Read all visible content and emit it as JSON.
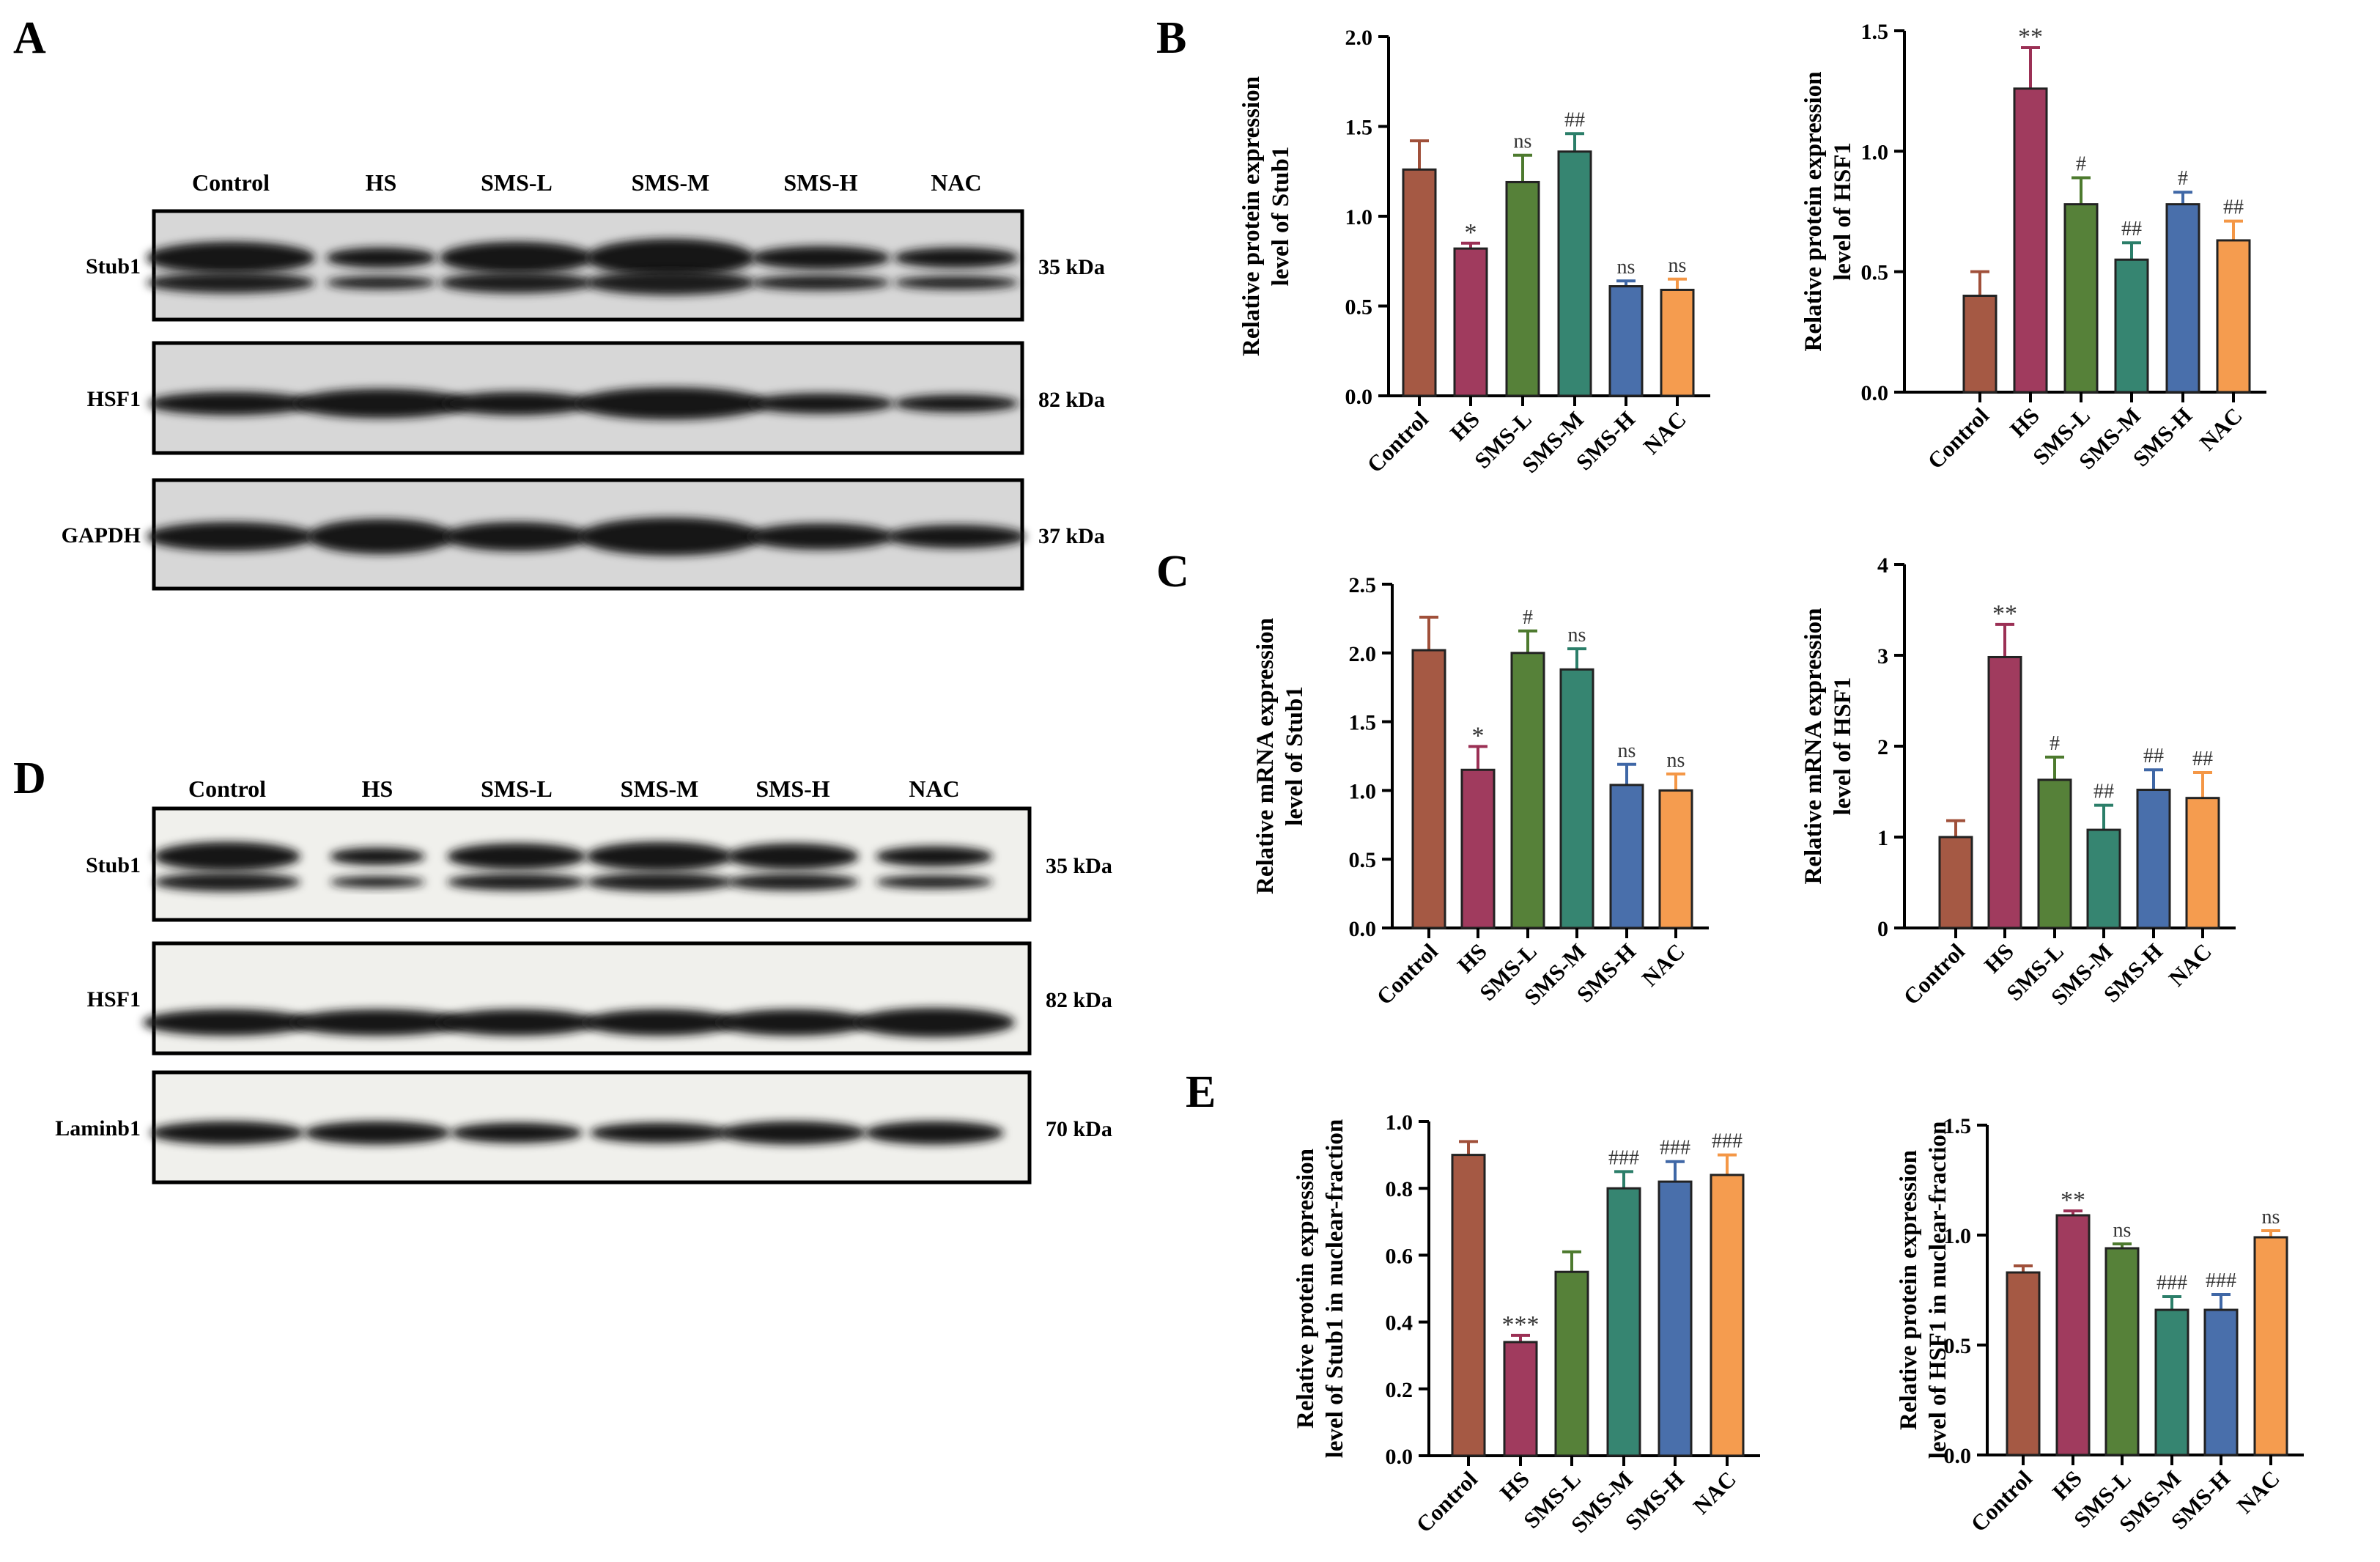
{
  "panel_letters": {
    "A": "A",
    "B": "B",
    "C": "C",
    "D": "D",
    "E": "E"
  },
  "blot_A": {
    "lanes": [
      "Control",
      "HS",
      "SMS-L",
      "SMS-M",
      "SMS-H",
      "NAC"
    ],
    "rows": [
      {
        "label": "Stub1",
        "kda": "35 kDa",
        "doublet": true
      },
      {
        "label": "HSF1",
        "kda": "82 kDa",
        "doublet": false
      },
      {
        "label": "GAPDH",
        "kda": "37 kDa",
        "doublet": false
      }
    ]
  },
  "blot_D": {
    "lanes": [
      "Control",
      "HS",
      "SMS-L",
      "SMS-M",
      "SMS-H",
      "NAC"
    ],
    "rows": [
      {
        "label": "Stub1",
        "kda": "35 kDa",
        "doublet": true
      },
      {
        "label": "HSF1",
        "kda": "82 kDa",
        "doublet": false
      },
      {
        "label": "Laminb1",
        "kda": "70 kDa",
        "doublet": false
      }
    ]
  },
  "colors": {
    "Control": "#a0503a",
    "HS": "#9b3055",
    "SMS-L": "#4d7a2e",
    "SMS-M": "#2b7e69",
    "SMS-H": "#3f67a6",
    "NAC": "#f49746"
  },
  "chart_data": [
    {
      "id": "B1",
      "type": "bar",
      "ylabel": [
        "Relative protein expression",
        "level of Stub1"
      ],
      "categories": [
        "Control",
        "HS",
        "SMS-L",
        "SMS-M",
        "SMS-H",
        "NAC"
      ],
      "values": [
        1.26,
        0.82,
        1.19,
        1.36,
        0.61,
        0.59
      ],
      "errors": [
        0.16,
        0.03,
        0.15,
        0.1,
        0.03,
        0.06
      ],
      "annotations": [
        "",
        "*",
        "ns",
        "##",
        "ns",
        "ns"
      ],
      "ylim": [
        0,
        2.0
      ],
      "yticks": [
        "0.0",
        "0.5",
        "1.0",
        "1.5",
        "2.0"
      ]
    },
    {
      "id": "B2",
      "type": "bar",
      "ylabel": [
        "Relative protein expression",
        "level of HSF1"
      ],
      "categories": [
        "Control",
        "HS",
        "SMS-L",
        "SMS-M",
        "SMS-H",
        "NAC"
      ],
      "values": [
        0.4,
        1.26,
        0.78,
        0.55,
        0.78,
        0.63
      ],
      "errors": [
        0.1,
        0.17,
        0.11,
        0.07,
        0.05,
        0.08
      ],
      "annotations": [
        "",
        "**",
        "#",
        "##",
        "#",
        "##"
      ],
      "ylim": [
        0,
        1.5
      ],
      "yticks": [
        "0.0",
        "0.5",
        "1.0",
        "1.5"
      ]
    },
    {
      "id": "C1",
      "type": "bar",
      "ylabel": [
        "Relative mRNA expression",
        "level of Stub1"
      ],
      "categories": [
        "Control",
        "HS",
        "SMS-L",
        "SMS-M",
        "SMS-H",
        "NAC"
      ],
      "values": [
        2.02,
        1.15,
        2.0,
        1.88,
        1.04,
        1.0
      ],
      "errors": [
        0.24,
        0.17,
        0.16,
        0.15,
        0.15,
        0.12
      ],
      "annotations": [
        "",
        "*",
        "#",
        "ns",
        "ns",
        "ns"
      ],
      "ylim": [
        0,
        2.5
      ],
      "yticks": [
        "0.0",
        "0.5",
        "1.0",
        "1.5",
        "2.0",
        "2.5"
      ]
    },
    {
      "id": "C2",
      "type": "bar",
      "ylabel": [
        "Relative mRNA expression",
        "level of HSF1"
      ],
      "categories": [
        "Control",
        "HS",
        "SMS-L",
        "SMS-M",
        "SMS-H",
        "NAC"
      ],
      "values": [
        1.0,
        2.98,
        1.63,
        1.08,
        1.52,
        1.43
      ],
      "errors": [
        0.18,
        0.36,
        0.25,
        0.27,
        0.22,
        0.28
      ],
      "annotations": [
        "",
        "**",
        "#",
        "##",
        "##",
        "##"
      ],
      "ylim": [
        0,
        4
      ],
      "yticks": [
        "0",
        "1",
        "2",
        "3",
        "4"
      ]
    },
    {
      "id": "E1",
      "type": "bar",
      "ylabel": [
        "Relative protein expression",
        "level of Stub1 in nuclear-fraction"
      ],
      "categories": [
        "Control",
        "HS",
        "SMS-L",
        "SMS-M",
        "SMS-H",
        "NAC"
      ],
      "values": [
        0.9,
        0.34,
        0.55,
        0.8,
        0.82,
        0.84
      ],
      "errors": [
        0.04,
        0.02,
        0.06,
        0.05,
        0.06,
        0.06
      ],
      "annotations": [
        "",
        "***",
        "",
        "###",
        "###",
        "###"
      ],
      "ylim": [
        0,
        1.0
      ],
      "yticks": [
        "0.0",
        "0.2",
        "0.4",
        "0.6",
        "0.8",
        "1.0"
      ]
    },
    {
      "id": "E2",
      "type": "bar",
      "ylabel": [
        "Relative protein expression",
        "level of HSF1  in nuclear-fraction"
      ],
      "categories": [
        "Control",
        "HS",
        "SMS-L",
        "SMS-M",
        "SMS-H",
        "NAC"
      ],
      "values": [
        0.83,
        1.09,
        0.94,
        0.66,
        0.66,
        0.99
      ],
      "errors": [
        0.03,
        0.02,
        0.02,
        0.06,
        0.07,
        0.03
      ],
      "annotations": [
        "",
        "**",
        "ns",
        "###",
        "###",
        "ns"
      ],
      "ylim": [
        0,
        1.5
      ],
      "yticks": [
        "0.0",
        "0.5",
        "1.0",
        "1.5"
      ]
    }
  ]
}
